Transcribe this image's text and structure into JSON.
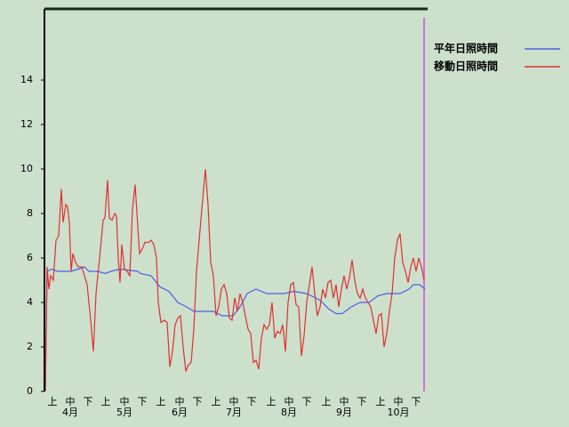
{
  "chart_data": {
    "type": "line",
    "xlim": [
      0,
      214
    ],
    "ylim": [
      0,
      17.2
    ],
    "yticks": [
      0,
      2,
      4,
      6,
      8,
      10,
      12,
      14
    ],
    "xticks": [
      {
        "value": 4.5,
        "label": "上"
      },
      {
        "value": 14.5,
        "label": "中"
      },
      {
        "value": 24.5,
        "label": "下"
      },
      {
        "value": 34.5,
        "label": "上"
      },
      {
        "value": 45,
        "label": "中"
      },
      {
        "value": 55,
        "label": "下"
      },
      {
        "value": 65.5,
        "label": "上"
      },
      {
        "value": 76,
        "label": "中"
      },
      {
        "value": 86,
        "label": "下"
      },
      {
        "value": 96.5,
        "label": "上"
      },
      {
        "value": 106.5,
        "label": "中"
      },
      {
        "value": 116.5,
        "label": "下"
      },
      {
        "value": 127.5,
        "label": "上"
      },
      {
        "value": 137.5,
        "label": "中"
      },
      {
        "value": 147.5,
        "label": "下"
      },
      {
        "value": 158.5,
        "label": "上"
      },
      {
        "value": 168.5,
        "label": "中"
      },
      {
        "value": 178.5,
        "label": "下"
      },
      {
        "value": 189,
        "label": "上"
      },
      {
        "value": 199,
        "label": "中"
      },
      {
        "value": 209,
        "label": "下"
      }
    ],
    "x_groups": [
      {
        "value": 14.5,
        "label": "4月"
      },
      {
        "value": 45,
        "label": "5月"
      },
      {
        "value": 76,
        "label": "6月"
      },
      {
        "value": 106.5,
        "label": "7月"
      },
      {
        "value": 137.5,
        "label": "8月"
      },
      {
        "value": 168.5,
        "label": "9月"
      },
      {
        "value": 199,
        "label": "10月"
      }
    ],
    "legend": "upper right",
    "series": [
      {
        "name": "平年日照時間",
        "color": "#5060e0",
        "x": [
          0.5,
          1.5,
          4,
          7.5,
          15,
          19,
          22.5,
          25,
          30,
          34,
          37.5,
          42.5,
          52.5,
          54,
          60,
          65,
          70,
          75,
          80,
          84,
          95,
          100,
          106,
          110,
          114,
          119,
          125,
          135,
          140,
          147.5,
          155,
          160,
          164,
          167.5,
          172.5,
          177.5,
          182.5,
          187.5,
          192.5,
          200,
          205,
          207.5,
          211,
          214
        ],
        "values": [
          0,
          5.4,
          5.5,
          5.4,
          5.4,
          5.5,
          5.6,
          5.4,
          5.4,
          5.3,
          5.4,
          5.5,
          5.4,
          5.3,
          5.2,
          4.7,
          4.5,
          4,
          3.8,
          3.6,
          3.6,
          3.4,
          3.4,
          3.8,
          4.4,
          4.6,
          4.4,
          4.4,
          4.5,
          4.4,
          4.1,
          3.7,
          3.5,
          3.5,
          3.8,
          4,
          4,
          4.3,
          4.4,
          4.4,
          4.6,
          4.8,
          4.8,
          4.6
        ]
      },
      {
        "name": "移動日照時間",
        "color": "#e03030",
        "x": [
          0.5,
          1.5,
          2.5,
          3.5,
          5,
          6.5,
          8,
          9.5,
          10.5,
          12,
          13,
          14,
          15,
          16,
          17.5,
          19,
          21,
          22.5,
          24,
          26,
          27.5,
          29,
          31,
          33,
          34,
          35.5,
          36.5,
          38,
          39.5,
          40.5,
          41.5,
          42.5,
          43.5,
          45,
          46.5,
          48,
          49.5,
          51,
          52.5,
          53.5,
          55,
          56.5,
          58.5,
          60,
          61.5,
          63,
          64,
          65.5,
          67.5,
          69,
          70.5,
          72,
          73.5,
          75,
          76.5,
          78,
          79.5,
          81,
          82.5,
          84,
          85.5,
          87,
          88.5,
          90.5,
          92,
          93.5,
          95,
          96.5,
          98,
          99.5,
          101,
          102.5,
          104,
          105.5,
          107,
          108.5,
          110,
          111.5,
          113,
          114.5,
          116,
          117.5,
          119,
          120.5,
          122,
          123.5,
          125,
          126.5,
          128,
          129.5,
          131,
          132.5,
          134,
          135.5,
          137,
          138.5,
          140,
          141.5,
          143,
          144.5,
          146,
          147.5,
          149,
          150.5,
          152,
          153.5,
          155,
          156.5,
          158,
          159.5,
          161,
          162.5,
          164,
          165.5,
          167,
          168.5,
          170,
          171.5,
          173,
          174.5,
          176,
          177.5,
          179,
          180.5,
          182,
          183.5,
          185,
          186.5,
          188,
          189.5,
          191,
          192.5,
          194,
          195.5,
          197,
          198.5,
          200,
          201.5,
          203,
          204.5,
          206,
          207.5,
          209,
          210.5,
          212,
          213.5
        ],
        "values": [
          0,
          5.6,
          4.6,
          5.2,
          5,
          6.8,
          7,
          9.1,
          7.6,
          8.4,
          8.3,
          7.6,
          5.4,
          6.2,
          5.8,
          5.6,
          5.6,
          5.2,
          4.8,
          3.2,
          1.8,
          4.4,
          6,
          7.7,
          7.8,
          9.5,
          7.8,
          7.7,
          8,
          7.9,
          6,
          4.9,
          6.6,
          5.5,
          5.4,
          5.2,
          8.2,
          9.3,
          7.4,
          6.2,
          6.4,
          6.7,
          6.7,
          6.8,
          6.6,
          6,
          4,
          3.1,
          3.2,
          3.1,
          1.1,
          1.8,
          3,
          3.3,
          3.4,
          2,
          0.9,
          1.2,
          1.3,
          2.8,
          5.4,
          6.8,
          8.2,
          10,
          8.4,
          5.8,
          5.2,
          3.4,
          3.8,
          4.6,
          4.8,
          4.4,
          3.3,
          3.2,
          4.2,
          3.6,
          4.4,
          4,
          3.4,
          2.8,
          2.6,
          1.3,
          1.4,
          1,
          2.4,
          3,
          2.8,
          3,
          4,
          2.4,
          2.7,
          2.6,
          3,
          1.8,
          4,
          4.8,
          4.9,
          3.9,
          3.8,
          1.6,
          2.5,
          4,
          4.8,
          5.6,
          4.4,
          3.4,
          3.8,
          4.6,
          4.2,
          4.9,
          5,
          4.2,
          4.8,
          3.8,
          4.6,
          5.2,
          4.6,
          5.1,
          5.9,
          5,
          4.4,
          4.2,
          4.6,
          4.2,
          4,
          3.8,
          3.2,
          2.6,
          3.4,
          3.5,
          2,
          2.6,
          3.6,
          4.4,
          6,
          6.8,
          7.1,
          5.8,
          5.4,
          4.9,
          5.6,
          6,
          5.4,
          6,
          5.6,
          5
        ]
      }
    ]
  }
}
